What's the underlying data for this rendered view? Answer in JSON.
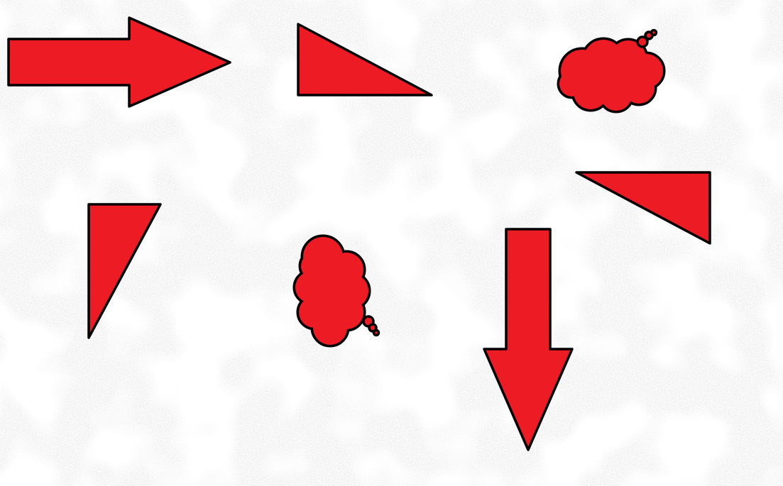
{
  "colors": {
    "shape_fill": "#ED1C24",
    "outline": "#000000",
    "background": "#FFFFFF",
    "speckle": "#C8C8C8"
  },
  "shapes": [
    {
      "kind": "arrow",
      "direction": "right"
    },
    {
      "kind": "right-triangle"
    },
    {
      "kind": "thought-cloud"
    },
    {
      "kind": "right-triangle"
    },
    {
      "kind": "right-triangle"
    },
    {
      "kind": "thought-cloud"
    },
    {
      "kind": "arrow",
      "direction": "down"
    }
  ]
}
